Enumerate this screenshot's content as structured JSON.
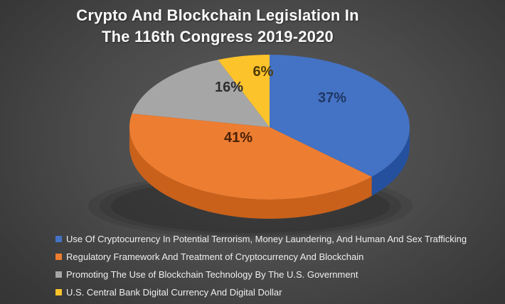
{
  "title": {
    "line1": "Crypto And Blockchain Legislation In",
    "line2": "The 116th Congress 2019-2020"
  },
  "chart_data": {
    "type": "pie",
    "style": "3d",
    "title": "Crypto And Blockchain Legislation In The 116th Congress 2019-2020",
    "start_angle_deg": 0,
    "direction": "clockwise",
    "value_suffix": "%",
    "legend_position": "bottom-left",
    "background": {
      "center": "#5c5c5c",
      "edge": "#323232"
    },
    "text_color": "#efefef",
    "series": [
      {
        "label": "Use Of Cryptocurrency In Potential Terrorism, Money Laundering, And Human And Sex Trafficking",
        "value": 37,
        "color": "#4472C4",
        "side_color": "#24509E",
        "label_color": "#1F3864"
      },
      {
        "label": "Regulatory Framework And Treatment of Cryptocurrency And Blockchain",
        "value": 41,
        "color": "#ED7D31",
        "side_color": "#C9611B",
        "label_color": "#4a2106"
      },
      {
        "label": "Promoting The Use of Blockchain Technology By The U.S. Government",
        "value": 16,
        "color": "#A6A6A6",
        "side_color": "#777777",
        "label_color": "#2e2e2e"
      },
      {
        "label": "U.S. Central Bank Digital Currency And Digital Dollar",
        "value": 6,
        "color": "#FDC32B",
        "side_color": "#C49210",
        "label_color": "#4e3a06"
      }
    ]
  }
}
